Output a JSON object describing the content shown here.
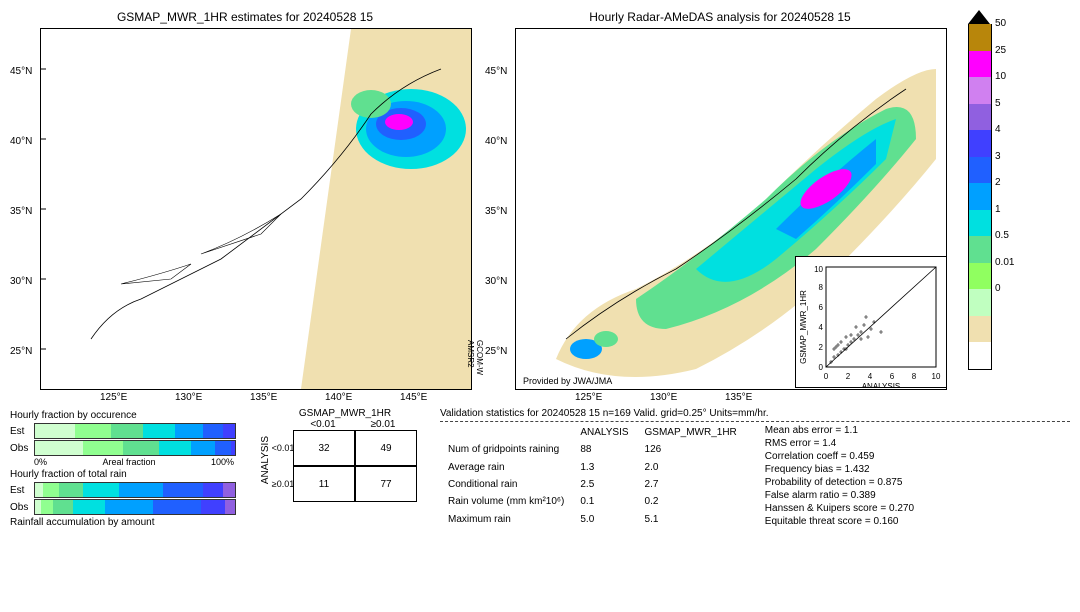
{
  "maps": {
    "left": {
      "title": "GSMAP_MWR_1HR estimates for 20240528 15",
      "xticks": [
        "125°E",
        "130°E",
        "135°E",
        "140°E",
        "145°E"
      ],
      "yticks": [
        "25°N",
        "30°N",
        "35°N",
        "40°N",
        "45°N"
      ],
      "side_label": "GCOM-W\nAMSR2"
    },
    "right": {
      "title": "Hourly Radar-AMeDAS analysis for 20240528 15",
      "xticks": [
        "125°E",
        "130°E",
        "135°E"
      ],
      "yticks": [
        "25°N",
        "30°N",
        "35°N",
        "40°N",
        "45°N"
      ],
      "attribution": "Provided by JWA/JMA",
      "inset": {
        "xlabel": "ANALYSIS",
        "ylabel": "GSMAP_MWR_1HR",
        "ticks": [
          0,
          2,
          4,
          6,
          8,
          10
        ]
      }
    }
  },
  "colorbar": {
    "colors": [
      "#b8860b",
      "#ff00ff",
      "#d080f0",
      "#9060e0",
      "#4040ff",
      "#2060ff",
      "#00a0ff",
      "#00e0e0",
      "#60e090",
      "#90ff60",
      "#c0ffc0",
      "#f0e0b0",
      "#ffffff"
    ],
    "labels": [
      "50",
      "25",
      "10",
      "5",
      "4",
      "3",
      "2",
      "1",
      "0.5",
      "0.01",
      "0"
    ]
  },
  "bars": {
    "title1": "Hourly fraction by occurence",
    "title2": "Hourly fraction of total rain",
    "title3": "Rainfall accumulation by amount",
    "axis_left": "0%",
    "axis_mid": "Areal fraction",
    "axis_right": "100%",
    "row_labels": [
      "Est",
      "Obs"
    ],
    "occurrence": {
      "est": [
        {
          "c": "#d0ffd0",
          "w": 20
        },
        {
          "c": "#90ff90",
          "w": 18
        },
        {
          "c": "#60e090",
          "w": 16
        },
        {
          "c": "#00e0e0",
          "w": 16
        },
        {
          "c": "#00a0ff",
          "w": 14
        },
        {
          "c": "#2060ff",
          "w": 10
        },
        {
          "c": "#4040ff",
          "w": 6
        }
      ],
      "obs": [
        {
          "c": "#d0ffd0",
          "w": 24
        },
        {
          "c": "#90ff90",
          "w": 20
        },
        {
          "c": "#60e090",
          "w": 18
        },
        {
          "c": "#00e0e0",
          "w": 16
        },
        {
          "c": "#00a0ff",
          "w": 12
        },
        {
          "c": "#2060ff",
          "w": 8
        },
        {
          "c": "#4040ff",
          "w": 2
        }
      ]
    },
    "total": {
      "est": [
        {
          "c": "#d0ffd0",
          "w": 4
        },
        {
          "c": "#90ff90",
          "w": 8
        },
        {
          "c": "#60e090",
          "w": 12
        },
        {
          "c": "#00e0e0",
          "w": 18
        },
        {
          "c": "#00a0ff",
          "w": 22
        },
        {
          "c": "#2060ff",
          "w": 20
        },
        {
          "c": "#4040ff",
          "w": 10
        },
        {
          "c": "#9060e0",
          "w": 6
        }
      ],
      "obs": [
        {
          "c": "#d0ffd0",
          "w": 3
        },
        {
          "c": "#90ff90",
          "w": 6
        },
        {
          "c": "#60e090",
          "w": 10
        },
        {
          "c": "#00e0e0",
          "w": 16
        },
        {
          "c": "#00a0ff",
          "w": 24
        },
        {
          "c": "#2060ff",
          "w": 24
        },
        {
          "c": "#4040ff",
          "w": 12
        },
        {
          "c": "#9060e0",
          "w": 5
        }
      ]
    }
  },
  "contingency": {
    "title": "GSMAP_MWR_1HR",
    "col_labels": [
      "<0.01",
      "≥0.01"
    ],
    "row_title": "ANALYSIS",
    "row_labels": [
      "<0.01",
      "≥0.01"
    ],
    "cells": [
      [
        32,
        49
      ],
      [
        11,
        77
      ]
    ]
  },
  "stats": {
    "title": "Validation statistics for 20240528 15  n=169 Valid. grid=0.25° Units=mm/hr.",
    "table": {
      "headers": [
        "",
        "ANALYSIS",
        "GSMAP_MWR_1HR"
      ],
      "rows": [
        [
          "Num of gridpoints raining",
          "88",
          "126"
        ],
        [
          "Average rain",
          "1.3",
          "2.0"
        ],
        [
          "Conditional rain",
          "2.5",
          "2.7"
        ],
        [
          "Rain volume (mm km²10⁶)",
          "0.1",
          "0.2"
        ],
        [
          "Maximum rain",
          "5.0",
          "5.1"
        ]
      ]
    },
    "metrics": [
      "Mean abs error =   1.1",
      "RMS error =   1.4",
      "Correlation coeff =  0.459",
      "Frequency bias =  1.432",
      "Probability of detection =  0.875",
      "False alarm ratio =  0.389",
      "Hanssen & Kuipers score =  0.270",
      "Equitable threat score =  0.160"
    ]
  }
}
